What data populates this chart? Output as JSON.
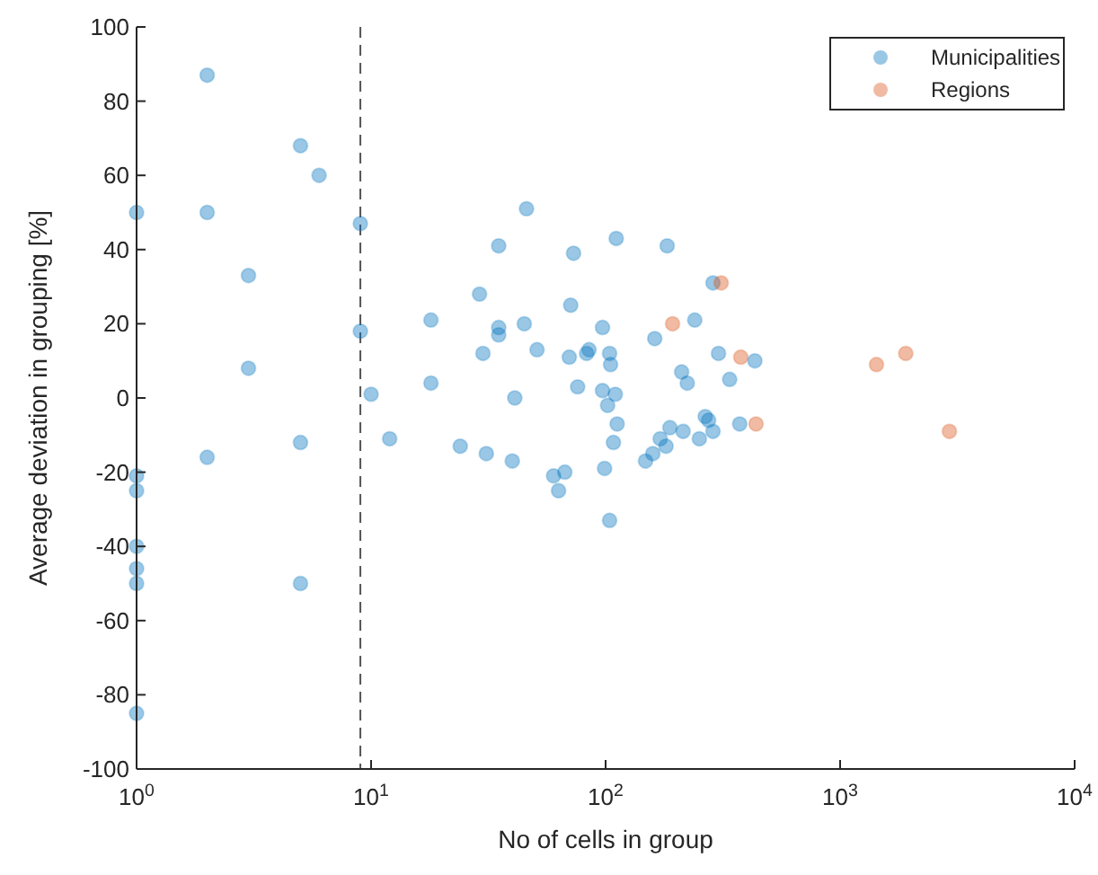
{
  "chart_data": {
    "type": "scatter",
    "xlabel": "No of cells in group",
    "ylabel": "Average deviation in grouping [%]",
    "log": "x",
    "xlim": [
      1,
      10000
    ],
    "ylim": [
      -100,
      100
    ],
    "xticks": [
      {
        "value": 1,
        "label": "10$^{0}$"
      },
      {
        "value": 10,
        "label": "10$^{1}$"
      },
      {
        "value": 100,
        "label": "10$^{2}$"
      },
      {
        "value": 1000,
        "label": "10$^{3}$"
      },
      {
        "value": 10000,
        "label": "10$^{4}$"
      }
    ],
    "yticks": [
      -100,
      -80,
      -60,
      -40,
      -20,
      0,
      20,
      40,
      60,
      80,
      100
    ],
    "grid": false,
    "legend": "top right",
    "marker": "circle",
    "ref_lines": [
      {
        "axis": "x",
        "value": 9,
        "line_style": "dashed",
        "color": "#555555"
      }
    ],
    "series": [
      {
        "name": "Municipalities",
        "color": "#0072bd",
        "x": [
          2,
          5,
          6,
          1,
          2,
          9,
          3,
          18,
          9,
          3,
          10,
          18,
          12,
          24,
          5,
          2,
          1,
          1,
          1,
          1,
          1,
          5,
          1,
          46,
          35,
          29,
          35,
          35,
          45,
          30,
          51,
          31,
          40,
          41,
          73,
          111,
          183,
          71,
          97,
          70,
          83,
          85,
          104,
          105,
          76,
          97,
          102,
          110,
          112,
          108,
          99,
          60,
          67,
          63,
          104,
          162,
          240,
          287,
          303,
          211,
          223,
          338,
          188,
          214,
          148,
          159,
          171,
          181,
          251,
          266,
          275,
          287,
          433,
          373
        ],
        "values": [
          87,
          68,
          60,
          50,
          50,
          47,
          33,
          21,
          18,
          8,
          1,
          4,
          -11,
          -13,
          -12,
          -16,
          -21,
          -25,
          -40,
          -46,
          -50,
          -50,
          -85,
          51,
          41,
          28,
          19,
          17,
          20,
          12,
          13,
          -15,
          -17,
          0,
          39,
          43,
          41,
          25,
          19,
          11,
          12,
          13,
          12,
          9,
          3,
          2,
          -2,
          1,
          -7,
          -12,
          -19,
          -21,
          -20,
          -25,
          -33,
          16,
          21,
          31,
          12,
          7,
          4,
          5,
          -8,
          -9,
          -17,
          -15,
          -11,
          -13,
          -11,
          -5,
          -6,
          -9,
          10,
          -7
        ]
      },
      {
        "name": "Regions",
        "color": "#d95319",
        "x": [
          193,
          311,
          377,
          438,
          1429,
          1905,
          2924
        ],
        "values": [
          20,
          31,
          11,
          -7,
          9,
          12,
          -9
        ]
      }
    ]
  }
}
